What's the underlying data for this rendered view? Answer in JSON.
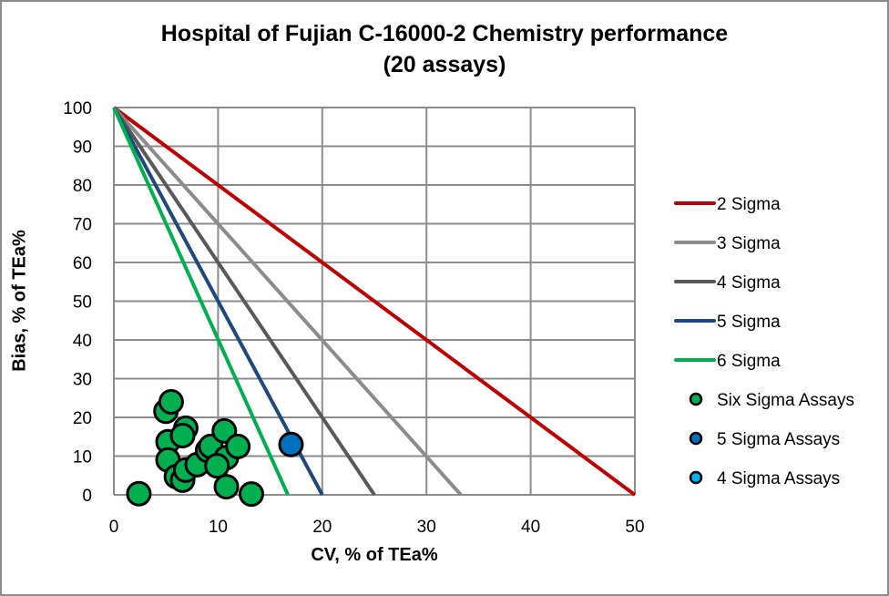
{
  "chart_data": {
    "type": "scatter",
    "title": "Hospital of Fujian C-16000-2  Chemistry performance",
    "subtitle": "(20 assays)",
    "xlabel": "CV, % of TEa%",
    "ylabel": "Bias, % of TEa%",
    "xlim": [
      0,
      50
    ],
    "ylim": [
      0,
      100
    ],
    "x_ticks": [
      0,
      10,
      20,
      30,
      40,
      50
    ],
    "y_ticks": [
      0,
      10,
      20,
      30,
      40,
      50,
      60,
      70,
      80,
      90,
      100
    ],
    "grid": true,
    "legend_position": "right",
    "sigma_lines": [
      {
        "name": "2 Sigma",
        "color": "#c00000",
        "points": [
          [
            0,
            100
          ],
          [
            50,
            0
          ]
        ]
      },
      {
        "name": "3 Sigma",
        "color": "#8c8c8c",
        "points": [
          [
            0,
            100
          ],
          [
            33.3,
            0
          ]
        ]
      },
      {
        "name": "4 Sigma",
        "color": "#595959",
        "points": [
          [
            0,
            100
          ],
          [
            25,
            0
          ]
        ]
      },
      {
        "name": "5 Sigma",
        "color": "#1f497d",
        "points": [
          [
            0,
            100
          ],
          [
            20,
            0
          ]
        ]
      },
      {
        "name": "6 Sigma",
        "color": "#00b050",
        "points": [
          [
            0,
            100
          ],
          [
            16.7,
            0
          ]
        ]
      }
    ],
    "series": [
      {
        "name": "Six Sigma Assays",
        "color": "#00b050",
        "points": [
          [
            2.4,
            0.3
          ],
          [
            5.0,
            21.6
          ],
          [
            5.5,
            24.0
          ],
          [
            5.2,
            13.7
          ],
          [
            5.2,
            9.0
          ],
          [
            6.0,
            4.7
          ],
          [
            6.6,
            3.8
          ],
          [
            6.9,
            6.4
          ],
          [
            6.9,
            17.2
          ],
          [
            6.6,
            15.3
          ],
          [
            8.0,
            7.8
          ],
          [
            9.0,
            11.5
          ],
          [
            9.3,
            12.5
          ],
          [
            10.6,
            16.5
          ],
          [
            10.8,
            9.6
          ],
          [
            9.9,
            7.5
          ],
          [
            10.8,
            2.1
          ],
          [
            11.9,
            12.5
          ],
          [
            13.2,
            0.2
          ]
        ]
      },
      {
        "name": "5 Sigma Assays",
        "color": "#0070c0",
        "points": [
          [
            17.0,
            13.0
          ]
        ]
      },
      {
        "name": "4 Sigma Assays",
        "color": "#00b0f0",
        "points": []
      }
    ]
  },
  "legend": [
    {
      "label": "2 Sigma",
      "kind": "line",
      "color": "#c00000"
    },
    {
      "label": "3 Sigma",
      "kind": "line",
      "color": "#8c8c8c"
    },
    {
      "label": "4 Sigma",
      "kind": "line",
      "color": "#595959"
    },
    {
      "label": "5 Sigma",
      "kind": "line",
      "color": "#1f497d"
    },
    {
      "label": "6 Sigma",
      "kind": "line",
      "color": "#00b050"
    },
    {
      "label": "Six Sigma Assays",
      "kind": "marker",
      "color": "#00b050"
    },
    {
      "label": "5 Sigma Assays",
      "kind": "marker",
      "color": "#0070c0"
    },
    {
      "label": "4 Sigma Assays",
      "kind": "marker",
      "color": "#00b0f0"
    }
  ]
}
